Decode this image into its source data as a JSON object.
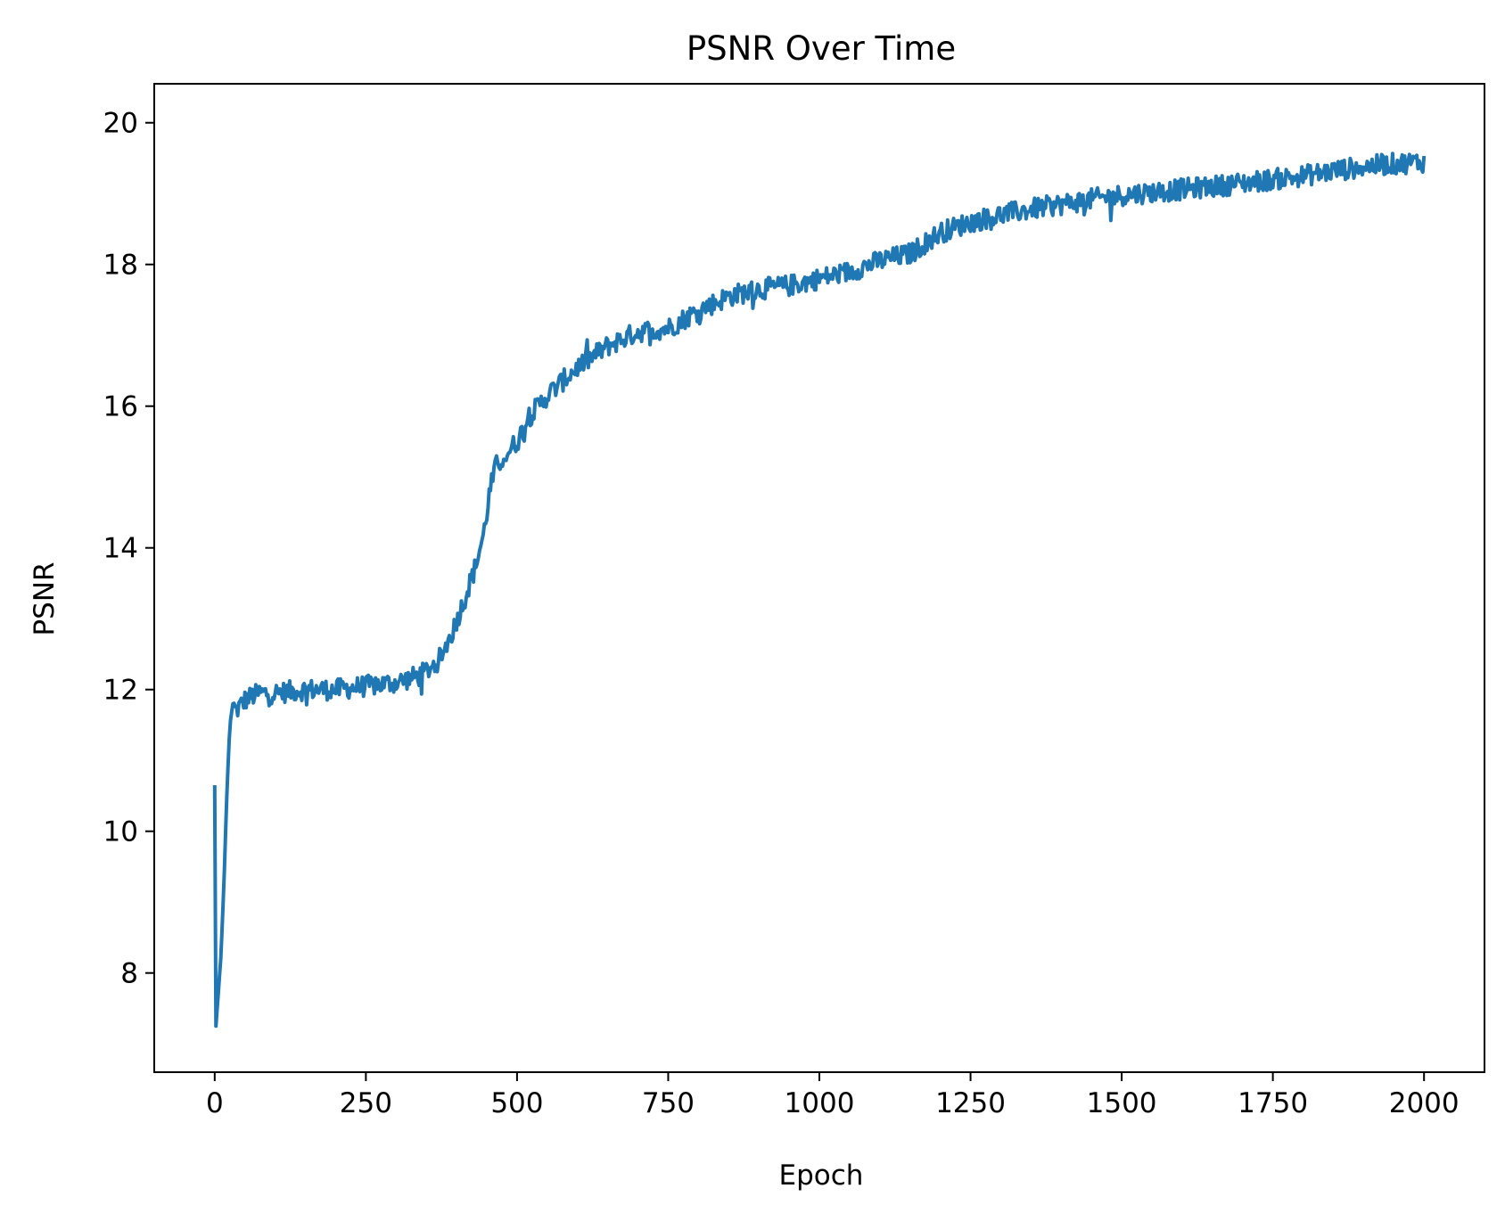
{
  "chart_data": {
    "type": "line",
    "title": "PSNR Over Time",
    "xlabel": "Epoch",
    "ylabel": "PSNR",
    "xlim": [
      -100,
      2100
    ],
    "ylim": [
      6.6,
      20.55
    ],
    "xticks": [
      0,
      250,
      500,
      750,
      1000,
      1250,
      1500,
      1750,
      2000
    ],
    "yticks": [
      8,
      10,
      12,
      14,
      16,
      18,
      20
    ],
    "grid": false,
    "legend": "none",
    "series": [
      {
        "color": "#1f77b4",
        "x": [
          0,
          2,
          5,
          10,
          15,
          20,
          25,
          30,
          35,
          40,
          45,
          50,
          60,
          75,
          100,
          150,
          200,
          250,
          300,
          340,
          370,
          390,
          410,
          430,
          445,
          455,
          465,
          480,
          500,
          520,
          550,
          575,
          600,
          650,
          700,
          750,
          800,
          850,
          900,
          950,
          1000,
          1050,
          1100,
          1150,
          1200,
          1250,
          1300,
          1350,
          1400,
          1450,
          1500,
          1550,
          1600,
          1650,
          1700,
          1750,
          1800,
          1850,
          1900,
          1950,
          2000
        ],
        "y": [
          10.65,
          7.25,
          7.6,
          8.2,
          9.2,
          10.5,
          11.5,
          11.8,
          11.7,
          11.75,
          11.8,
          11.85,
          11.9,
          11.95,
          11.95,
          12.0,
          12.0,
          12.05,
          12.1,
          12.2,
          12.4,
          12.75,
          13.2,
          13.7,
          14.2,
          14.8,
          15.15,
          15.3,
          15.5,
          15.85,
          16.15,
          16.35,
          16.55,
          16.85,
          17.05,
          17.1,
          17.35,
          17.55,
          17.65,
          17.7,
          17.8,
          17.9,
          18.05,
          18.15,
          18.45,
          18.6,
          18.7,
          18.78,
          18.85,
          18.92,
          18.98,
          19.02,
          19.06,
          19.1,
          19.15,
          19.2,
          19.25,
          19.32,
          19.38,
          19.42,
          19.45
        ],
        "noise_amplitude": 0.15
      }
    ]
  }
}
